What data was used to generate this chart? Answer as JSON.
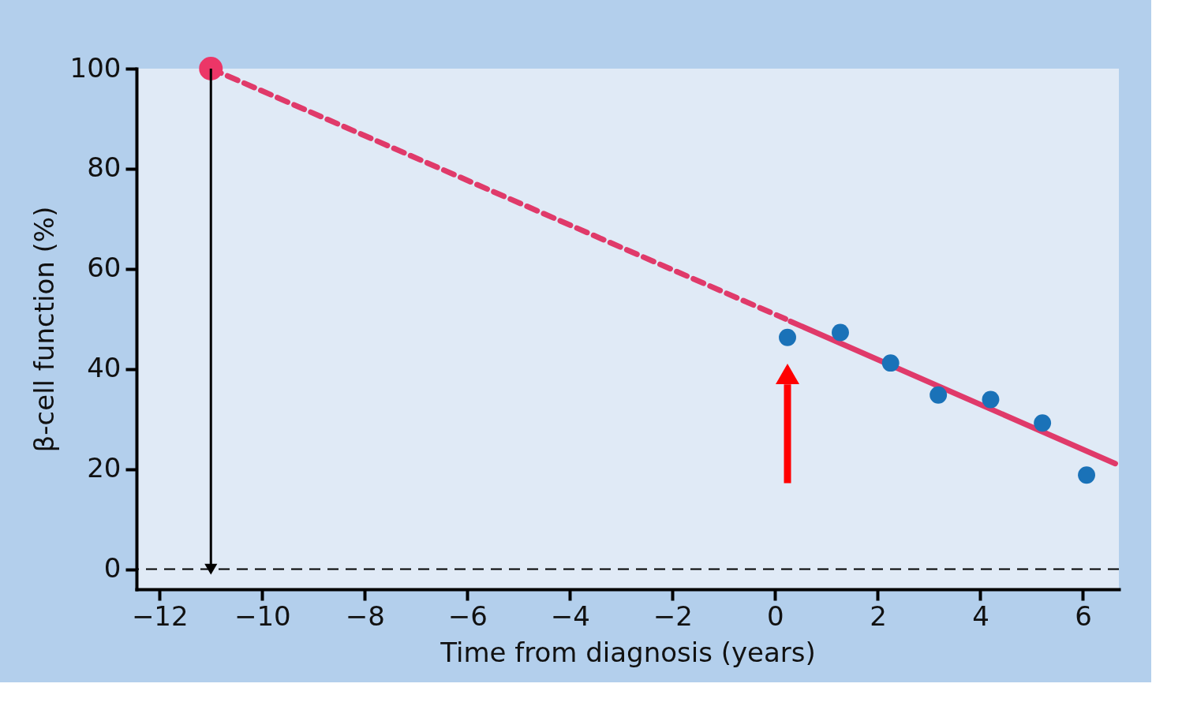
{
  "chart_data": {
    "type": "line",
    "xlabel": "Time from diagnosis (years)",
    "ylabel": "β-cell function (%)",
    "xlim": [
      -12.45,
      6.7
    ],
    "ylim": [
      -4,
      100
    ],
    "xticks": [
      -12,
      -10,
      -8,
      -6,
      -4,
      -2,
      0,
      2,
      4,
      6
    ],
    "yticks": [
      0,
      20,
      40,
      60,
      80,
      100
    ],
    "grid": false,
    "legend": false,
    "series": [
      {
        "line_style": "dashed",
        "marker": "none",
        "color": "#e03a6a",
        "x": [
          -11,
          0.2
        ],
        "values": [
          100,
          50
        ]
      },
      {
        "line_style": "solid",
        "marker": "none",
        "color": "#e03a6a",
        "x": [
          0.3,
          6.63
        ],
        "values": [
          49.5,
          21.1
        ]
      },
      {
        "type": "scatter",
        "marker": "circle",
        "color": "#1a72b8",
        "x": [
          0.24,
          1.27,
          2.25,
          3.18,
          4.2,
          5.21,
          6.07
        ],
        "values": [
          46.3,
          47.3,
          41.2,
          34.8,
          33.9,
          29.2,
          18.8
        ]
      },
      {
        "type": "scatter",
        "marker": "circle",
        "color": "#ec3667",
        "x": [
          -11
        ],
        "values": [
          100
        ]
      },
      {
        "line_style": "solid",
        "marker": "triangle",
        "color": "#000000",
        "x": [
          -11,
          -11
        ],
        "values": [
          100,
          0
        ]
      }
    ],
    "ref_lines": [
      {
        "axis": "y",
        "value": 0,
        "color": "#000000",
        "line_style": "dashed"
      }
    ]
  }
}
